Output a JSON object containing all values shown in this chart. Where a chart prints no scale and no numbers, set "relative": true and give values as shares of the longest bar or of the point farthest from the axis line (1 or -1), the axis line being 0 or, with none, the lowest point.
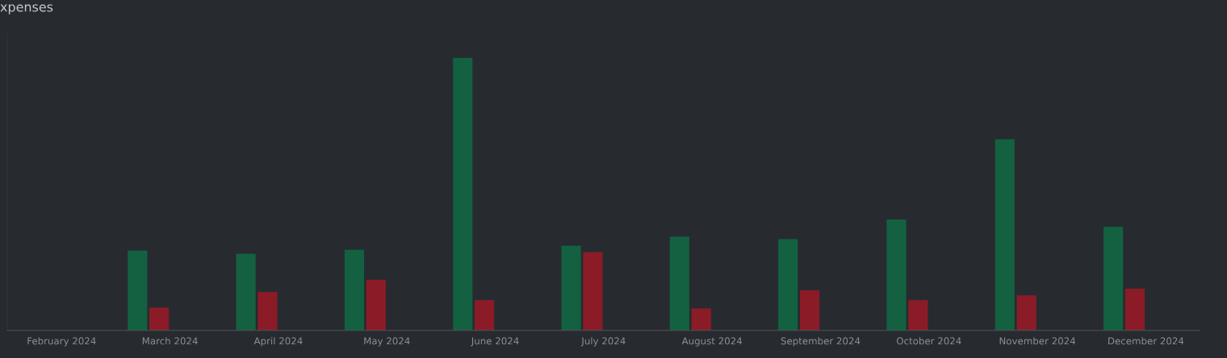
{
  "chart_data": {
    "type": "bar",
    "title": "xpenses",
    "relative": true,
    "grid": false,
    "legend": false,
    "categories": [
      "February 2024",
      "March 2024",
      "April 2024",
      "May 2024",
      "June 2024",
      "July 2024",
      "August 2024",
      "September 2024",
      "October 2024",
      "November 2024",
      "December 2024"
    ],
    "series": [
      {
        "color": "#136140",
        "values": [
          null,
          0.293,
          0.281,
          0.296,
          1.0,
          0.311,
          0.344,
          0.335,
          0.407,
          0.701,
          0.38
        ]
      },
      {
        "color": "#8b1c27",
        "values": [
          0,
          0.084,
          0.141,
          0.186,
          0.111,
          0.287,
          0.081,
          0.147,
          0.111,
          0.129,
          0.153
        ]
      }
    ]
  }
}
